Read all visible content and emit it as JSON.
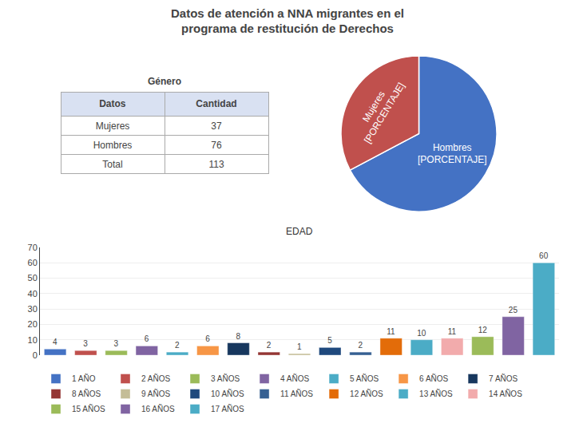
{
  "title": "Datos de atención a NNA migrantes en el\nprograma de restitución de Derechos",
  "chart_data": [
    {
      "type": "table",
      "title": "Género",
      "header": [
        "Datos",
        "Cantidad"
      ],
      "rows": [
        [
          "Mujeres",
          "37"
        ],
        [
          "Hombres",
          "76"
        ],
        [
          "Total",
          "113"
        ]
      ]
    },
    {
      "type": "pie",
      "categories": [
        "Hombres\n[PORCENTAJE]",
        "Mujeres\n[PORCENTAJE]"
      ],
      "values": [
        76,
        37
      ],
      "colors": [
        "#4472C4",
        "#C0504D"
      ]
    },
    {
      "type": "bar",
      "title": "EDAD",
      "categories": [
        "1 AÑO",
        "2 AÑOS",
        "3 AÑOS",
        "4 AÑOS",
        "5 AÑOS",
        "6 AÑOS",
        "7 AÑOS",
        "8 AÑOS",
        "9 AÑOS",
        "10 AÑOS",
        "11 AÑOS",
        "12 AÑOS",
        "13 AÑOS",
        "14 AÑOS",
        "15 AÑOS",
        "16 AÑOS",
        "17 AÑOS"
      ],
      "values": [
        4,
        3,
        3,
        6,
        2,
        6,
        8,
        2,
        1,
        5,
        2,
        11,
        10,
        11,
        12,
        25,
        60
      ],
      "colors": [
        "#4472C4",
        "#C0504D",
        "#9BBB59",
        "#8064A2",
        "#4BACC6",
        "#F79646",
        "#17375E",
        "#943634",
        "#C4BD97",
        "#1F497D",
        "#366092",
        "#E36C09",
        "#4BACC6",
        "#F2ABAC",
        "#9BBB59",
        "#8064A2",
        "#4BACC6"
      ],
      "ylim": [
        0,
        70
      ],
      "yticks": [
        0,
        10,
        20,
        30,
        40,
        50,
        60,
        70
      ],
      "grid": true,
      "data_labels": true,
      "tick_labels": "y",
      "legend": "bottom"
    }
  ]
}
